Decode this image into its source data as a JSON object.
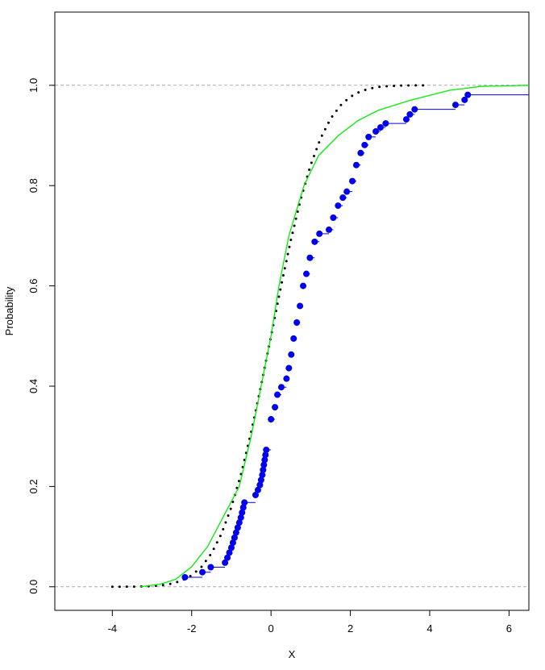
{
  "chart_data": {
    "type": "line",
    "xlabel": "X",
    "ylabel": "Probability",
    "xlim": [
      -5.45,
      6.5
    ],
    "ylim": [
      -0.047,
      1.146
    ],
    "xticks": [
      -4,
      -2,
      0,
      2,
      4,
      6
    ],
    "yticks": [
      {
        "value": 0,
        "label": "0.0"
      },
      {
        "value": 0.2,
        "label": "0.2"
      },
      {
        "value": 0.4,
        "label": "0.4"
      },
      {
        "value": 0.6,
        "label": "0.6"
      },
      {
        "value": 0.8,
        "label": "0.8"
      },
      {
        "value": 1,
        "label": "1.0"
      }
    ],
    "hlines": [
      0,
      1
    ],
    "series": [
      {
        "style": "dotted",
        "color": "#000000",
        "x": [
          -4,
          -3.75,
          -3.5,
          -3.25,
          -3,
          -2.75,
          -2.5,
          -2.25,
          -2,
          -1.75,
          -1.5,
          -1.25,
          -1,
          -0.75,
          -0.5,
          -0.25,
          0,
          0.25,
          0.5,
          0.75,
          1,
          1.25,
          1.5,
          1.75,
          2,
          2.25,
          2.5,
          2.75,
          3,
          3.25,
          3.5,
          3.75,
          4
        ],
        "values": [
          3e-05,
          0.0001,
          0.0002,
          0.0006,
          0.0013,
          0.003,
          0.0062,
          0.0122,
          0.0228,
          0.0401,
          0.0668,
          0.1056,
          0.1587,
          0.2266,
          0.3085,
          0.4013,
          0.5,
          0.5987,
          0.6915,
          0.7734,
          0.8413,
          0.8944,
          0.9332,
          0.9599,
          0.9772,
          0.9878,
          0.9938,
          0.997,
          0.9987,
          0.9994,
          0.9998,
          0.9999,
          1.0
        ]
      },
      {
        "style": "line",
        "color": "#00ee00",
        "x": [
          -3.3,
          -2.8,
          -2.4,
          -2,
          -1.6,
          -1.2,
          -0.8,
          -0.5,
          -0.25,
          0,
          0.2,
          0.45,
          0.83,
          1.2,
          1.7,
          2.2,
          2.7,
          3.5,
          4.5,
          5.3,
          6.5
        ],
        "values": [
          0,
          0.005,
          0.015,
          0.04,
          0.08,
          0.14,
          0.2,
          0.3,
          0.4,
          0.5,
          0.6,
          0.7,
          0.8,
          0.86,
          0.9,
          0.93,
          0.95,
          0.97,
          0.99,
          0.998,
          1.0
        ]
      },
      {
        "style": "step-points",
        "color": "#0000ee",
        "x": [
          -2.17,
          -1.73,
          -1.52,
          -1.16,
          -1.1,
          -1.05,
          -1.0,
          -0.96,
          -0.92,
          -0.88,
          -0.84,
          -0.8,
          -0.76,
          -0.73,
          -0.7,
          -0.67,
          -0.39,
          -0.33,
          -0.28,
          -0.25,
          -0.22,
          -0.2,
          -0.18,
          -0.16,
          -0.14,
          -0.12,
          0,
          0.1,
          0.16,
          0.26,
          0.39,
          0.45,
          0.51,
          0.57,
          0.65,
          0.73,
          0.81,
          0.89,
          0.98,
          1.1,
          1.22,
          1.46,
          1.57,
          1.69,
          1.81,
          1.91,
          2.05,
          2.15,
          2.26,
          2.36,
          2.46,
          2.64,
          2.76,
          2.89,
          3.41,
          3.5,
          3.62,
          4.65,
          4.88,
          4.96
        ],
        "values": [
          0.019,
          0.029,
          0.039,
          0.048,
          0.058,
          0.068,
          0.078,
          0.088,
          0.098,
          0.108,
          0.118,
          0.128,
          0.138,
          0.148,
          0.158,
          0.168,
          0.183,
          0.193,
          0.203,
          0.213,
          0.223,
          0.233,
          0.243,
          0.253,
          0.263,
          0.273,
          0.334,
          0.358,
          0.383,
          0.398,
          0.415,
          0.436,
          0.463,
          0.495,
          0.527,
          0.56,
          0.6,
          0.624,
          0.656,
          0.688,
          0.704,
          0.712,
          0.736,
          0.76,
          0.776,
          0.788,
          0.809,
          0.841,
          0.865,
          0.881,
          0.897,
          0.908,
          0.916,
          0.924,
          0.932,
          0.942,
          0.952,
          0.961,
          0.971,
          0.981
        ]
      }
    ]
  }
}
